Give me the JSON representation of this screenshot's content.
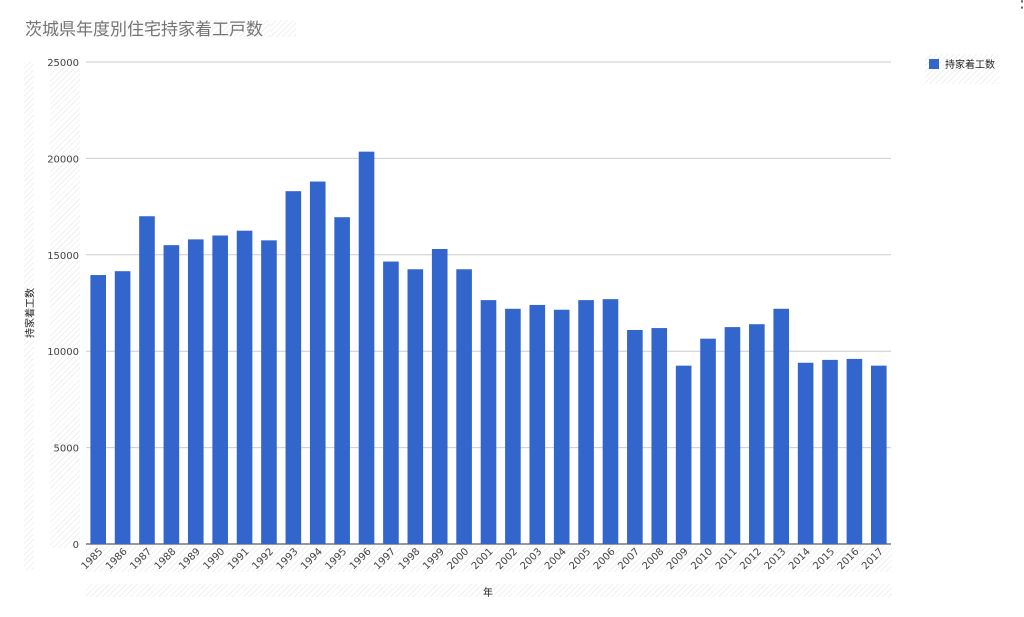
{
  "menu_icon": "vertical-dots-icon",
  "chart_data": {
    "type": "bar",
    "title": "茨城県年度別住宅持家着工戸数",
    "xlabel": "年",
    "ylabel": "持家着工数",
    "ylim": [
      0,
      25000
    ],
    "yticks": [
      0,
      5000,
      10000,
      15000,
      20000,
      25000
    ],
    "grid": true,
    "legend_position": "right",
    "color": "#3366cc",
    "categories": [
      "1985",
      "1986",
      "1987",
      "1988",
      "1989",
      "1990",
      "1991",
      "1992",
      "1993",
      "1994",
      "1995",
      "1996",
      "1997",
      "1998",
      "1999",
      "2000",
      "2001",
      "2002",
      "2003",
      "2004",
      "2005",
      "2006",
      "2007",
      "2008",
      "2009",
      "2010",
      "2011",
      "2012",
      "2013",
      "2014",
      "2015",
      "2016",
      "2017"
    ],
    "series": [
      {
        "name": "持家着工数",
        "values": [
          13950,
          14150,
          17000,
          15500,
          15800,
          16000,
          16250,
          15750,
          18300,
          18800,
          16950,
          20350,
          14650,
          14250,
          15300,
          14250,
          12650,
          12200,
          12400,
          12150,
          12650,
          12700,
          11100,
          11200,
          9250,
          10650,
          11250,
          11400,
          12200,
          9400,
          9550,
          9600,
          9250
        ]
      }
    ]
  }
}
